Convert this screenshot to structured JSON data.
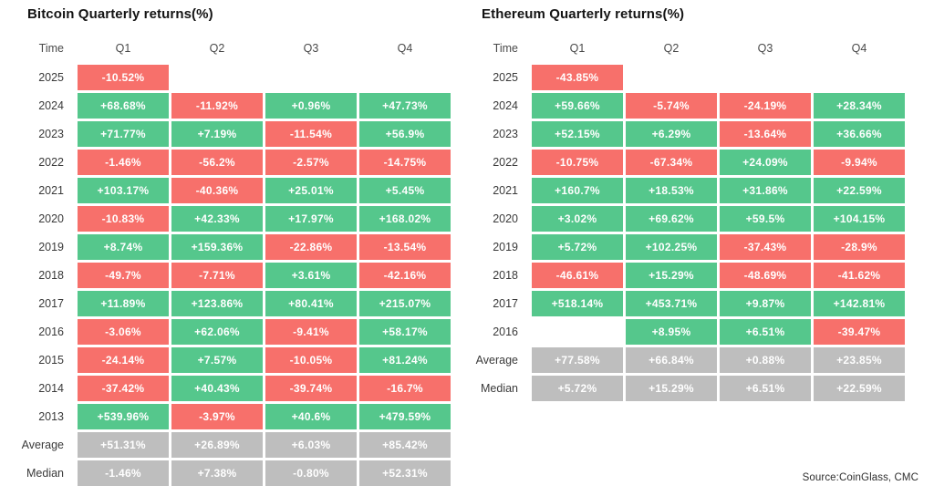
{
  "page": {
    "background": "#ffffff",
    "source_note": "Source:CoinGlass, CMC"
  },
  "colors": {
    "positive": "#55c78c",
    "negative": "#f7706b",
    "neutral": "#bebebe",
    "cell_text": "#ffffff"
  },
  "chart_data": [
    {
      "type": "heatmap",
      "title": "Bitcoin Quarterly returns(%)",
      "col_headers": [
        "Time",
        "Q1",
        "Q2",
        "Q3",
        "Q4"
      ],
      "rows": [
        {
          "label": "2025",
          "cells": [
            {
              "text": "-10.52%",
              "sign": "negative"
            },
            null,
            null,
            null
          ]
        },
        {
          "label": "2024",
          "cells": [
            {
              "text": "+68.68%",
              "sign": "positive"
            },
            {
              "text": "-11.92%",
              "sign": "negative"
            },
            {
              "text": "+0.96%",
              "sign": "positive"
            },
            {
              "text": "+47.73%",
              "sign": "positive"
            }
          ]
        },
        {
          "label": "2023",
          "cells": [
            {
              "text": "+71.77%",
              "sign": "positive"
            },
            {
              "text": "+7.19%",
              "sign": "positive"
            },
            {
              "text": "-11.54%",
              "sign": "negative"
            },
            {
              "text": "+56.9%",
              "sign": "positive"
            }
          ]
        },
        {
          "label": "2022",
          "cells": [
            {
              "text": "-1.46%",
              "sign": "negative"
            },
            {
              "text": "-56.2%",
              "sign": "negative"
            },
            {
              "text": "-2.57%",
              "sign": "negative"
            },
            {
              "text": "-14.75%",
              "sign": "negative"
            }
          ]
        },
        {
          "label": "2021",
          "cells": [
            {
              "text": "+103.17%",
              "sign": "positive"
            },
            {
              "text": "-40.36%",
              "sign": "negative"
            },
            {
              "text": "+25.01%",
              "sign": "positive"
            },
            {
              "text": "+5.45%",
              "sign": "positive"
            }
          ]
        },
        {
          "label": "2020",
          "cells": [
            {
              "text": "-10.83%",
              "sign": "negative"
            },
            {
              "text": "+42.33%",
              "sign": "positive"
            },
            {
              "text": "+17.97%",
              "sign": "positive"
            },
            {
              "text": "+168.02%",
              "sign": "positive"
            }
          ]
        },
        {
          "label": "2019",
          "cells": [
            {
              "text": "+8.74%",
              "sign": "positive"
            },
            {
              "text": "+159.36%",
              "sign": "positive"
            },
            {
              "text": "-22.86%",
              "sign": "negative"
            },
            {
              "text": "-13.54%",
              "sign": "negative"
            }
          ]
        },
        {
          "label": "2018",
          "cells": [
            {
              "text": "-49.7%",
              "sign": "negative"
            },
            {
              "text": "-7.71%",
              "sign": "negative"
            },
            {
              "text": "+3.61%",
              "sign": "positive"
            },
            {
              "text": "-42.16%",
              "sign": "negative"
            }
          ]
        },
        {
          "label": "2017",
          "cells": [
            {
              "text": "+11.89%",
              "sign": "positive"
            },
            {
              "text": "+123.86%",
              "sign": "positive"
            },
            {
              "text": "+80.41%",
              "sign": "positive"
            },
            {
              "text": "+215.07%",
              "sign": "positive"
            }
          ]
        },
        {
          "label": "2016",
          "cells": [
            {
              "text": "-3.06%",
              "sign": "negative"
            },
            {
              "text": "+62.06%",
              "sign": "positive"
            },
            {
              "text": "-9.41%",
              "sign": "negative"
            },
            {
              "text": "+58.17%",
              "sign": "positive"
            }
          ]
        },
        {
          "label": "2015",
          "cells": [
            {
              "text": "-24.14%",
              "sign": "negative"
            },
            {
              "text": "+7.57%",
              "sign": "positive"
            },
            {
              "text": "-10.05%",
              "sign": "negative"
            },
            {
              "text": "+81.24%",
              "sign": "positive"
            }
          ]
        },
        {
          "label": "2014",
          "cells": [
            {
              "text": "-37.42%",
              "sign": "negative"
            },
            {
              "text": "+40.43%",
              "sign": "positive"
            },
            {
              "text": "-39.74%",
              "sign": "negative"
            },
            {
              "text": "-16.7%",
              "sign": "negative"
            }
          ]
        },
        {
          "label": "2013",
          "cells": [
            {
              "text": "+539.96%",
              "sign": "positive"
            },
            {
              "text": "-3.97%",
              "sign": "negative"
            },
            {
              "text": "+40.6%",
              "sign": "positive"
            },
            {
              "text": "+479.59%",
              "sign": "positive"
            }
          ]
        },
        {
          "label": "Average",
          "cells": [
            {
              "text": "+51.31%",
              "sign": "neutral"
            },
            {
              "text": "+26.89%",
              "sign": "neutral"
            },
            {
              "text": "+6.03%",
              "sign": "neutral"
            },
            {
              "text": "+85.42%",
              "sign": "neutral"
            }
          ]
        },
        {
          "label": "Median",
          "cells": [
            {
              "text": "-1.46%",
              "sign": "neutral"
            },
            {
              "text": "+7.38%",
              "sign": "neutral"
            },
            {
              "text": "-0.80%",
              "sign": "neutral"
            },
            {
              "text": "+52.31%",
              "sign": "neutral"
            }
          ]
        }
      ]
    },
    {
      "type": "heatmap",
      "title": "Ethereum Quarterly returns(%)",
      "col_headers": [
        "Time",
        "Q1",
        "Q2",
        "Q3",
        "Q4"
      ],
      "rows": [
        {
          "label": "2025",
          "cells": [
            {
              "text": "-43.85%",
              "sign": "negative"
            },
            null,
            null,
            null
          ]
        },
        {
          "label": "2024",
          "cells": [
            {
              "text": "+59.66%",
              "sign": "positive"
            },
            {
              "text": "-5.74%",
              "sign": "negative"
            },
            {
              "text": "-24.19%",
              "sign": "negative"
            },
            {
              "text": "+28.34%",
              "sign": "positive"
            }
          ]
        },
        {
          "label": "2023",
          "cells": [
            {
              "text": "+52.15%",
              "sign": "positive"
            },
            {
              "text": "+6.29%",
              "sign": "positive"
            },
            {
              "text": "-13.64%",
              "sign": "negative"
            },
            {
              "text": "+36.66%",
              "sign": "positive"
            }
          ]
        },
        {
          "label": "2022",
          "cells": [
            {
              "text": "-10.75%",
              "sign": "negative"
            },
            {
              "text": "-67.34%",
              "sign": "negative"
            },
            {
              "text": "+24.09%",
              "sign": "positive"
            },
            {
              "text": "-9.94%",
              "sign": "negative"
            }
          ]
        },
        {
          "label": "2021",
          "cells": [
            {
              "text": "+160.7%",
              "sign": "positive"
            },
            {
              "text": "+18.53%",
              "sign": "positive"
            },
            {
              "text": "+31.86%",
              "sign": "positive"
            },
            {
              "text": "+22.59%",
              "sign": "positive"
            }
          ]
        },
        {
          "label": "2020",
          "cells": [
            {
              "text": "+3.02%",
              "sign": "positive"
            },
            {
              "text": "+69.62%",
              "sign": "positive"
            },
            {
              "text": "+59.5%",
              "sign": "positive"
            },
            {
              "text": "+104.15%",
              "sign": "positive"
            }
          ]
        },
        {
          "label": "2019",
          "cells": [
            {
              "text": "+5.72%",
              "sign": "positive"
            },
            {
              "text": "+102.25%",
              "sign": "positive"
            },
            {
              "text": "-37.43%",
              "sign": "negative"
            },
            {
              "text": "-28.9%",
              "sign": "negative"
            }
          ]
        },
        {
          "label": "2018",
          "cells": [
            {
              "text": "-46.61%",
              "sign": "negative"
            },
            {
              "text": "+15.29%",
              "sign": "positive"
            },
            {
              "text": "-48.69%",
              "sign": "negative"
            },
            {
              "text": "-41.62%",
              "sign": "negative"
            }
          ]
        },
        {
          "label": "2017",
          "cells": [
            {
              "text": "+518.14%",
              "sign": "positive"
            },
            {
              "text": "+453.71%",
              "sign": "positive"
            },
            {
              "text": "+9.87%",
              "sign": "positive"
            },
            {
              "text": "+142.81%",
              "sign": "positive"
            }
          ]
        },
        {
          "label": "2016",
          "cells": [
            null,
            {
              "text": "+8.95%",
              "sign": "positive"
            },
            {
              "text": "+6.51%",
              "sign": "positive"
            },
            {
              "text": "-39.47%",
              "sign": "negative"
            }
          ]
        },
        {
          "label": "Average",
          "cells": [
            {
              "text": "+77.58%",
              "sign": "neutral"
            },
            {
              "text": "+66.84%",
              "sign": "neutral"
            },
            {
              "text": "+0.88%",
              "sign": "neutral"
            },
            {
              "text": "+23.85%",
              "sign": "neutral"
            }
          ]
        },
        {
          "label": "Median",
          "cells": [
            {
              "text": "+5.72%",
              "sign": "neutral"
            },
            {
              "text": "+15.29%",
              "sign": "neutral"
            },
            {
              "text": "+6.51%",
              "sign": "neutral"
            },
            {
              "text": "+22.59%",
              "sign": "neutral"
            }
          ]
        }
      ]
    }
  ]
}
